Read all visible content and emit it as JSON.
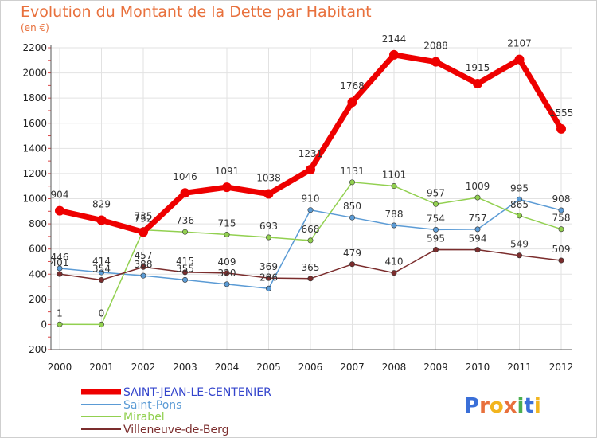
{
  "chart_data": {
    "type": "line",
    "title": "Evolution du Montant de la Dette par Habitant",
    "subtitle": "(en €)",
    "xlabel": "",
    "ylabel": "",
    "ylim": [
      -200,
      2200
    ],
    "yticks": [
      -200,
      0,
      200,
      400,
      600,
      800,
      1000,
      1200,
      1400,
      1600,
      1800,
      2000,
      2200
    ],
    "x": [
      "2000",
      "2001",
      "2002",
      "2003",
      "2004",
      "2005",
      "2006",
      "2007",
      "2008",
      "2009",
      "2010",
      "2011",
      "2012"
    ],
    "grid": true,
    "legend": "bottom-left",
    "series": [
      {
        "name": "SAINT-JEAN-LE-CENTENIER",
        "color": "#ee0000",
        "values": [
          904,
          829,
          735,
          1046,
          1091,
          1038,
          1231,
          1768,
          2144,
          2088,
          1915,
          2107,
          1555
        ]
      },
      {
        "name": "Saint-Pons",
        "color": "#5b9bd5",
        "values": [
          446,
          414,
          388,
          355,
          320,
          286,
          910,
          850,
          788,
          754,
          757,
          995,
          908
        ]
      },
      {
        "name": "Mirabel",
        "color": "#92d050",
        "values": [
          1,
          0,
          752,
          736,
          715,
          693,
          668,
          1131,
          1101,
          957,
          1009,
          865,
          758
        ]
      },
      {
        "name": "Villeneuve-de-Berg",
        "color": "#7b2d2d",
        "values": [
          401,
          354,
          457,
          415,
          409,
          369,
          365,
          479,
          410,
          595,
          594,
          549,
          509
        ]
      }
    ]
  },
  "logo": {
    "text": "Proxiti",
    "colors": [
      "#3a6fd8",
      "#e8703c",
      "#f2b51f",
      "#e8703c",
      "#4caf50",
      "#3a6fd8",
      "#f2b51f"
    ]
  }
}
